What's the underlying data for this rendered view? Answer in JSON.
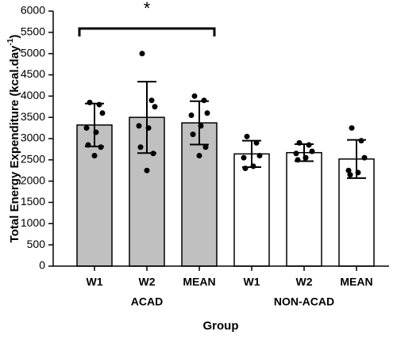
{
  "chart_data": {
    "type": "bar",
    "y_label": {
      "text": "Total Energy Expenditure (kcal.day",
      "superscript": "-1",
      "close": ")"
    },
    "x_label": "Group",
    "annotation": "*",
    "categories": [
      "W1",
      "W2",
      "MEAN",
      "W1",
      "W2",
      "MEAN"
    ],
    "groups": [
      "ACAD",
      "NON-ACAD"
    ],
    "values": [
      3320,
      3500,
      3370,
      2640,
      2670,
      2520
    ],
    "errors": [
      505,
      840,
      510,
      310,
      200,
      450
    ],
    "points": [
      [
        3850,
        3800,
        3600,
        3250,
        3150,
        2850,
        2800,
        2600
      ],
      [
        5000,
        3900,
        3750,
        3300,
        3250,
        2800,
        2650,
        2250
      ],
      [
        4000,
        3900,
        3600,
        3550,
        3300,
        3100,
        2800,
        2600
      ],
      [
        3050,
        2900,
        2600,
        2550,
        2350,
        2300
      ],
      [
        2900,
        2850,
        2700,
        2650,
        2550,
        2500
      ],
      [
        3250,
        2950,
        2550,
        2250,
        2200,
        2150
      ]
    ],
    "bar_colors": [
      "#c0c0c0",
      "#c0c0c0",
      "#c0c0c0",
      "#ffffff",
      "#ffffff",
      "#ffffff"
    ],
    "ylim": [
      0,
      6000
    ],
    "yticks": [
      0,
      500,
      1000,
      1500,
      2000,
      2500,
      3000,
      3500,
      4000,
      4500,
      5000,
      5500,
      6000
    ],
    "grid": false
  }
}
